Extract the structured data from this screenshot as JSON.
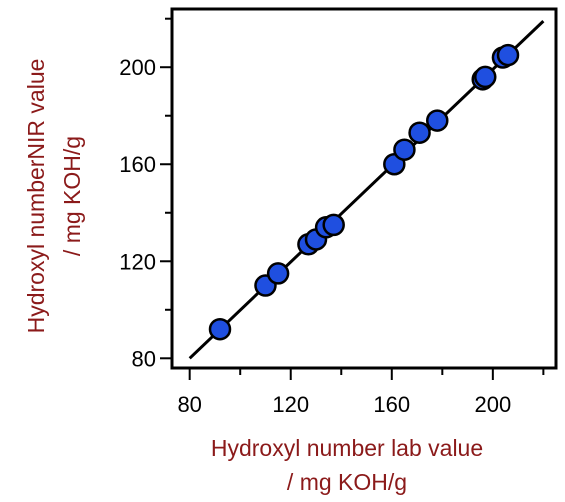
{
  "chart_data": {
    "type": "scatter",
    "xlabel_line1": "Hydroxyl number  lab value",
    "xlabel_line2": "/ mg KOH/g",
    "ylabel_line1": "Hydroxyl numberNIR value",
    "ylabel_line2": "/ mg KOH/g",
    "xlim": [
      73,
      225
    ],
    "ylim": [
      76,
      224
    ],
    "xticks": [
      80,
      120,
      160,
      200
    ],
    "yticks": [
      80,
      120,
      160,
      200
    ],
    "grid": false,
    "legend": "none",
    "point_color": "#1f4fe0",
    "line_color": "#000000",
    "fit_line": {
      "x": [
        80,
        220
      ],
      "y": [
        80,
        219
      ]
    },
    "points": [
      {
        "x": 92,
        "y": 92
      },
      {
        "x": 110,
        "y": 110
      },
      {
        "x": 115,
        "y": 115
      },
      {
        "x": 127,
        "y": 127
      },
      {
        "x": 130,
        "y": 129
      },
      {
        "x": 134,
        "y": 134
      },
      {
        "x": 137,
        "y": 135
      },
      {
        "x": 161,
        "y": 160
      },
      {
        "x": 165,
        "y": 166
      },
      {
        "x": 171,
        "y": 173
      },
      {
        "x": 178,
        "y": 178
      },
      {
        "x": 196,
        "y": 195
      },
      {
        "x": 197,
        "y": 196
      },
      {
        "x": 204,
        "y": 204
      },
      {
        "x": 206,
        "y": 205
      }
    ]
  }
}
